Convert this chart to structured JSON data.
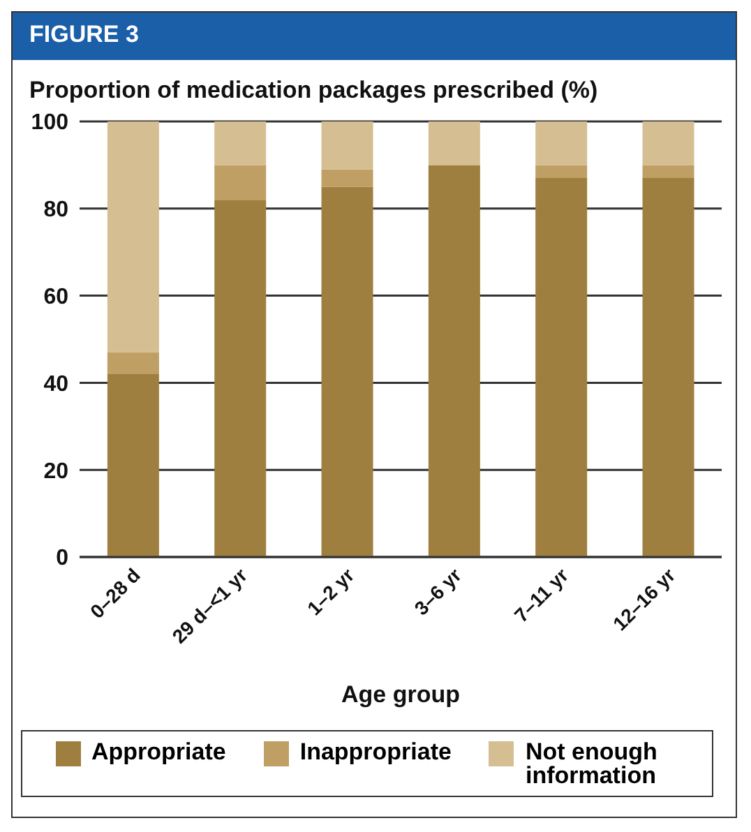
{
  "chart_data": {
    "type": "bar",
    "title": "FIGURE 3",
    "ylabel": "Proportion of medication packages prescribed (%)",
    "xlabel": "Age group",
    "categories": [
      "0–28 d",
      "29 d–<1 yr",
      "1–2 yr",
      "3–6 yr",
      "7–11 yr",
      "12–16 yr"
    ],
    "stacked": true,
    "series": [
      {
        "name": "Appropriate",
        "color": "#9f7f3f",
        "values": [
          42,
          82,
          85,
          90,
          87,
          87
        ]
      },
      {
        "name": "Inappropriate",
        "color": "#bf9f63",
        "values": [
          5,
          8,
          4,
          0,
          3,
          3
        ]
      },
      {
        "name": "Not enough information",
        "color": "#d5bf92",
        "values": [
          53,
          10,
          11,
          10,
          10,
          10
        ]
      }
    ],
    "ylim": [
      0,
      100
    ],
    "yticks": [
      0,
      20,
      40,
      60,
      80,
      100
    ],
    "grid": "y",
    "legend": "bottom"
  }
}
